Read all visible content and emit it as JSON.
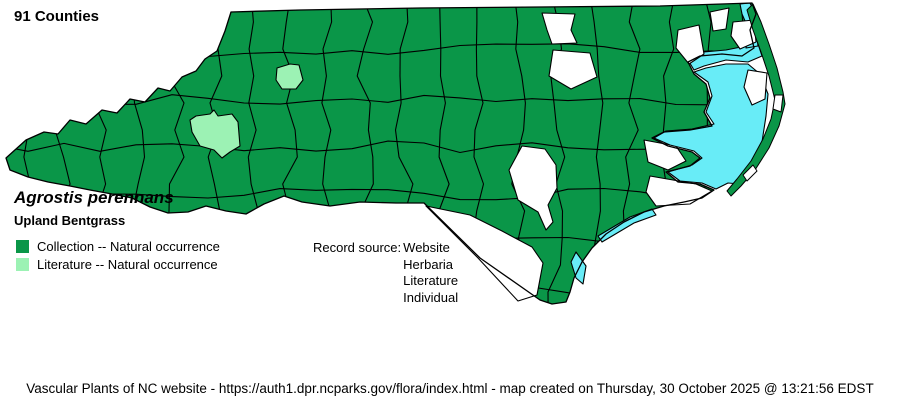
{
  "title": "91 Counties",
  "species": {
    "scientific_name": "Agrostis perennans",
    "common_name": "Upland Bentgrass"
  },
  "legend": {
    "items": [
      {
        "label": "Collection -- Natural occurrence",
        "color": "#0a9648"
      },
      {
        "label": "Literature -- Natural occurrence",
        "color": "#9cf2b4"
      }
    ]
  },
  "record_source": {
    "label": "Record source:",
    "values": [
      "Website",
      "Herbaria",
      "Literature",
      "Individual"
    ]
  },
  "footer": {
    "text": "Vascular Plants of NC website - https://auth1.dpr.ncparks.gov/flora/index.html - map created on Thursday, 30 October 2025 @ 13:21:56 EDST"
  },
  "map": {
    "region": "North Carolina county distribution map",
    "collection_color": "#0a9648",
    "literature_color": "#9cf2b4",
    "unrecorded_color": "#ffffff",
    "water_color": "#68ecf7",
    "border_color": "#000000"
  }
}
